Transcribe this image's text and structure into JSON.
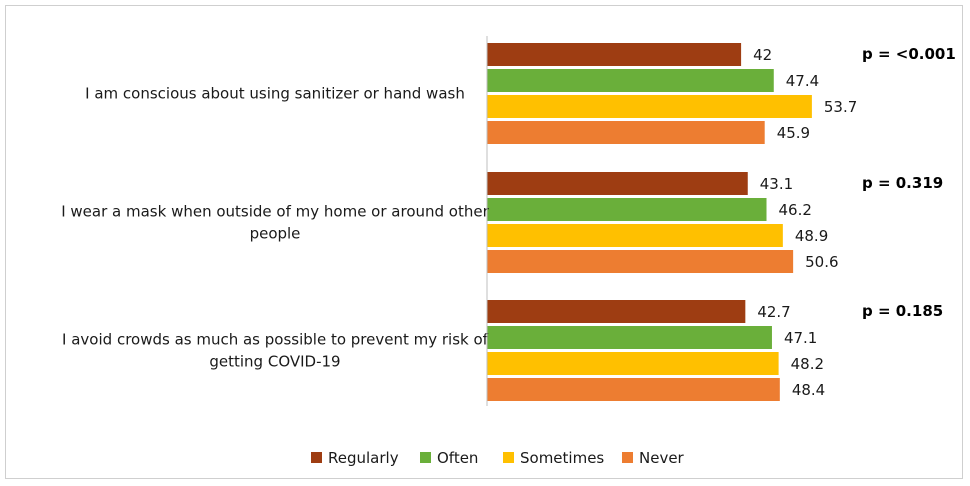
{
  "chart_data": {
    "type": "bar",
    "orientation": "horizontal",
    "title": "",
    "xlabel": "",
    "ylabel": "",
    "xlim": [
      0,
      60
    ],
    "grid": false,
    "legend_position": "bottom",
    "categories": [
      {
        "lines": [
          "I am conscious about using sanitizer or hand wash"
        ],
        "p_value": "p = <0.001"
      },
      {
        "lines": [
          "I wear a mask when outside of my home or around other",
          "people"
        ],
        "p_value": "p = 0.319"
      },
      {
        "lines": [
          "I avoid crowds as much as possible to prevent my risk of",
          "getting COVID-19"
        ],
        "p_value": "p = 0.185"
      }
    ],
    "series": [
      {
        "name": "Regularly",
        "color": "#9e3d12",
        "values": [
          42,
          43.1,
          42.7
        ]
      },
      {
        "name": "Often",
        "color": "#6aaf3a",
        "values": [
          47.4,
          46.2,
          47.1
        ]
      },
      {
        "name": "Sometimes",
        "color": "#ffc000",
        "values": [
          53.7,
          48.9,
          48.2
        ]
      },
      {
        "name": "Never",
        "color": "#ed7d31",
        "values": [
          45.9,
          50.6,
          48.4
        ]
      }
    ]
  }
}
